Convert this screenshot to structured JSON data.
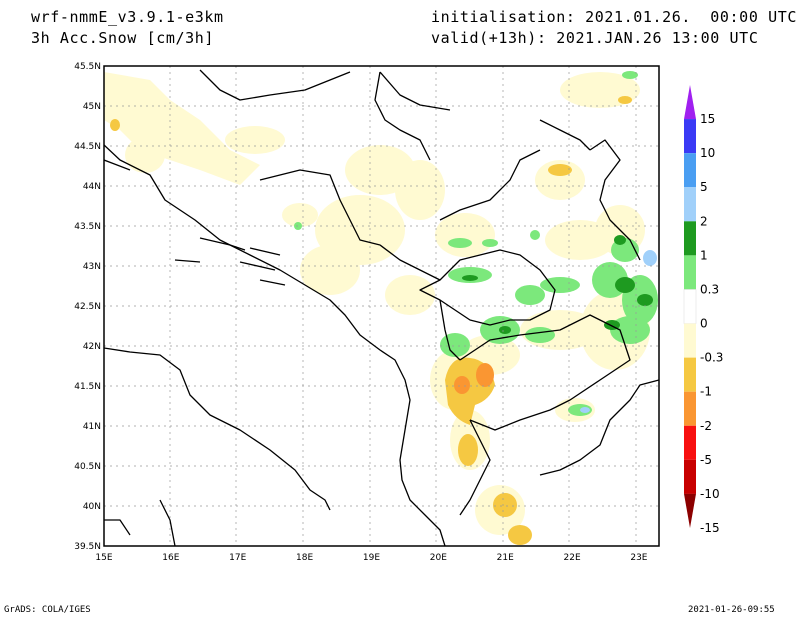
{
  "header": {
    "model": "wrf-nmmE_v3.9.1-e3km",
    "field": "3h Acc.Snow [cm/3h]",
    "init": "initialisation: 2021.01.26.  00:00 UTC",
    "valid": "valid(+13h): 2021.JAN.26 13:00 UTC"
  },
  "map": {
    "lon_range": [
      15,
      23.3
    ],
    "lat_range": [
      39.5,
      45.5
    ],
    "lon_ticks": [
      "15E",
      "16E",
      "17E",
      "18E",
      "19E",
      "20E",
      "21E",
      "22E",
      "23E"
    ],
    "lat_ticks": [
      "45.5N",
      "45N",
      "44.5N",
      "44N",
      "43.5N",
      "43N",
      "42.5N",
      "42N",
      "41.5N",
      "41N",
      "40.5N",
      "40N",
      "39.5N"
    ]
  },
  "colorbar": {
    "levels": [
      "15",
      "10",
      "5",
      "2",
      "1",
      "0.3",
      "0",
      "-0.3",
      "-1",
      "-2",
      "-5",
      "-10",
      "-15"
    ],
    "colors": [
      "#a020f0",
      "#3a3af5",
      "#4a9ef2",
      "#a0d0fa",
      "#1e9a20",
      "#7ce87c",
      "#ffffff",
      "#fffad2",
      "#f5c842",
      "#fa9632",
      "#f81010",
      "#c80000",
      "#8c0000"
    ]
  },
  "footer": {
    "left": "GrADS: COLA/IGES",
    "right": "2021-01-26-09:55"
  }
}
